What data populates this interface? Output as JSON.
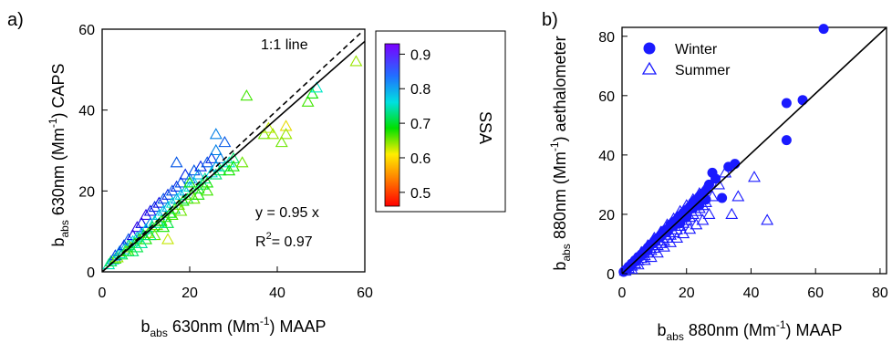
{
  "chart_data": [
    {
      "type": "scatter",
      "panel_label": "a)",
      "xlabel": {
        "base": "b",
        "sub": "abs",
        "rest": " 630nm (Mm",
        "sup": "-1",
        "tail": ") MAAP"
      },
      "ylabel": {
        "base": "b",
        "sub": "abs",
        "rest": " 630nm (Mm",
        "sup": "-1",
        "tail": ") CAPS"
      },
      "xlim": [
        0,
        60
      ],
      "ylim": [
        0,
        60
      ],
      "x_ticks": [
        "0",
        "20",
        "40",
        "60"
      ],
      "y_ticks": [
        "0",
        "20",
        "40",
        "60"
      ],
      "marker": "open-triangle",
      "lines": [
        {
          "name": "1:1 line",
          "style": "dashed",
          "slope": 1
        },
        {
          "name": "fit",
          "style": "solid",
          "slope": 0.95
        }
      ],
      "one_to_one_label": "1:1 line",
      "fit_text": "y = 0.95 x",
      "r2_text": {
        "base": "R",
        "sup": "2",
        "rest": "= 0.97"
      },
      "colorbar": {
        "label": "SSA",
        "ticks": [
          "0.9",
          "0.8",
          "0.7",
          "0.6",
          "0.5"
        ],
        "range": [
          0.46,
          0.93
        ],
        "colormap": "rainbow (red low, violet high)"
      },
      "series": [
        {
          "name": "SSA-colored points",
          "points": [
            [
              1.5,
              1.8,
              0.75
            ],
            [
              2,
              2.5,
              0.7
            ],
            [
              2.5,
              3,
              0.8
            ],
            [
              3,
              3.2,
              0.65
            ],
            [
              3,
              4,
              0.85
            ],
            [
              3.5,
              3.5,
              0.6
            ],
            [
              4,
              4.5,
              0.75
            ],
            [
              4,
              5,
              0.82
            ],
            [
              4.5,
              4.2,
              0.7
            ],
            [
              5,
              5.5,
              0.8
            ],
            [
              5,
              6.5,
              0.86
            ],
            [
              5.5,
              5,
              0.62
            ],
            [
              6,
              6.5,
              0.72
            ],
            [
              6,
              8,
              0.84
            ],
            [
              6.5,
              6,
              0.6
            ],
            [
              7,
              7.5,
              0.78
            ],
            [
              7,
              9,
              0.88
            ],
            [
              7.5,
              7,
              0.66
            ],
            [
              8,
              8.5,
              0.76
            ],
            [
              8,
              11,
              0.9
            ],
            [
              8.5,
              8,
              0.64
            ],
            [
              9,
              9.5,
              0.8
            ],
            [
              9,
              12,
              0.88
            ],
            [
              9.5,
              9,
              0.68
            ],
            [
              10,
              10.5,
              0.78
            ],
            [
              10,
              14,
              0.9
            ],
            [
              10.5,
              9.5,
              0.6
            ],
            [
              11,
              12,
              0.82
            ],
            [
              11,
              15,
              0.88
            ],
            [
              11.5,
              11,
              0.7
            ],
            [
              12,
              12.5,
              0.76
            ],
            [
              12,
              16,
              0.86
            ],
            [
              12.5,
              11.5,
              0.62
            ],
            [
              13,
              14,
              0.8
            ],
            [
              13,
              17,
              0.88
            ],
            [
              13.5,
              12.5,
              0.66
            ],
            [
              14,
              15,
              0.78
            ],
            [
              14,
              18,
              0.84
            ],
            [
              14.5,
              13.5,
              0.64
            ],
            [
              15,
              16,
              0.8
            ],
            [
              15,
              19,
              0.86
            ],
            [
              15.5,
              14.5,
              0.68
            ],
            [
              16,
              17,
              0.76
            ],
            [
              16,
              20,
              0.84
            ],
            [
              16.5,
              15.5,
              0.7
            ],
            [
              17,
              18,
              0.8
            ],
            [
              17,
              21,
              0.86
            ],
            [
              17.5,
              16.5,
              0.62
            ],
            [
              18,
              19,
              0.78
            ],
            [
              18,
              22,
              0.84
            ],
            [
              18.5,
              17.5,
              0.66
            ],
            [
              19,
              20,
              0.8
            ],
            [
              19,
              24,
              0.86
            ],
            [
              19.5,
              18,
              0.7
            ],
            [
              20,
              21,
              0.76
            ],
            [
              20,
              23,
              0.82
            ],
            [
              20.5,
              19,
              0.64
            ],
            [
              21,
              22,
              0.78
            ],
            [
              21,
              25,
              0.84
            ],
            [
              22,
              20.5,
              0.68
            ],
            [
              22,
              24,
              0.8
            ],
            [
              22.5,
              26,
              0.86
            ],
            [
              23,
              21.5,
              0.7
            ],
            [
              23.5,
              23,
              0.74
            ],
            [
              24,
              27,
              0.84
            ],
            [
              24,
              22,
              0.66
            ],
            [
              25,
              24.5,
              0.78
            ],
            [
              25,
              28,
              0.86
            ],
            [
              26,
              24,
              0.72
            ],
            [
              26,
              26,
              0.8
            ],
            [
              27,
              25,
              0.7
            ],
            [
              27,
              28,
              0.82
            ],
            [
              28,
              26,
              0.74
            ],
            [
              29,
              27,
              0.76
            ],
            [
              29,
              25,
              0.66
            ],
            [
              30,
              28,
              0.72
            ],
            [
              33,
              43.5,
              0.64
            ],
            [
              37,
              34,
              0.62
            ],
            [
              38,
              35.5,
              0.58
            ],
            [
              39,
              34,
              0.6
            ],
            [
              41,
              32,
              0.62
            ],
            [
              42,
              36,
              0.56
            ],
            [
              42,
              34,
              0.6
            ],
            [
              47,
              42,
              0.64
            ],
            [
              48,
              44,
              0.66
            ],
            [
              49,
              45.5,
              0.76
            ],
            [
              58,
              52,
              0.6
            ],
            [
              17,
              27,
              0.84
            ],
            [
              20,
              22,
              0.66
            ],
            [
              21,
              18,
              0.62
            ],
            [
              14,
              11,
              0.66
            ],
            [
              12,
              9,
              0.62
            ],
            [
              15,
              12,
              0.7
            ],
            [
              16,
              14,
              0.64
            ],
            [
              10,
              8,
              0.66
            ],
            [
              8,
              6,
              0.7
            ],
            [
              6,
              5,
              0.66
            ],
            [
              18,
              15,
              0.62
            ],
            [
              22,
              19,
              0.66
            ],
            [
              24,
              20,
              0.64
            ],
            [
              26,
              30,
              0.82
            ],
            [
              28,
              32,
              0.84
            ],
            [
              30,
              26,
              0.66
            ],
            [
              32,
              27,
              0.62
            ],
            [
              26,
              34,
              0.82
            ],
            [
              15,
              8,
              0.58
            ],
            [
              13,
              12,
              0.74
            ],
            [
              11,
              9,
              0.72
            ],
            [
              9,
              7,
              0.74
            ],
            [
              7,
              5,
              0.72
            ]
          ]
        }
      ]
    },
    {
      "type": "scatter",
      "panel_label": "b)",
      "xlabel": {
        "base": "b",
        "sub": "abs",
        "rest": " 880nm (Mm",
        "sup": "-1",
        "tail": ") MAAP"
      },
      "ylabel": {
        "base": "b",
        "sub": "abs",
        "rest": " 880nm (Mm",
        "sup": "-1",
        "tail": ") aethalometer"
      },
      "xlim": [
        0,
        82
      ],
      "ylim": [
        0,
        83
      ],
      "x_ticks": [
        "0",
        "20",
        "40",
        "60",
        "80"
      ],
      "y_ticks": [
        "0",
        "20",
        "40",
        "60",
        "80"
      ],
      "legend_position": "top-left",
      "accent_color": "#1a1aff",
      "lines": [
        {
          "name": "fit",
          "style": "solid",
          "slope": 1.02
        }
      ],
      "series": [
        {
          "name": "Winter",
          "marker": "filled-circle",
          "points": [
            [
              0.5,
              0.6
            ],
            [
              1,
              1.2
            ],
            [
              1.5,
              1.5
            ],
            [
              2,
              2.3
            ],
            [
              2.5,
              2.6
            ],
            [
              3,
              3.4
            ],
            [
              3.5,
              3.6
            ],
            [
              4,
              4.5
            ],
            [
              4.5,
              4.8
            ],
            [
              5,
              5.6
            ],
            [
              5.5,
              5.8
            ],
            [
              6,
              6.5
            ],
            [
              6.5,
              6.8
            ],
            [
              7,
              7.6
            ],
            [
              7.5,
              7.8
            ],
            [
              8,
              8.8
            ],
            [
              8.5,
              9.2
            ],
            [
              9,
              9.8
            ],
            [
              9.5,
              10.2
            ],
            [
              10,
              11
            ],
            [
              10.5,
              11.5
            ],
            [
              11,
              12
            ],
            [
              12,
              13
            ],
            [
              12.5,
              13.4
            ],
            [
              13,
              14.5
            ],
            [
              14,
              15
            ],
            [
              15,
              16.5
            ],
            [
              16,
              17.5
            ],
            [
              17,
              18.2
            ],
            [
              18,
              19.5
            ],
            [
              19,
              20.5
            ],
            [
              20,
              21.5
            ],
            [
              21,
              22.5
            ],
            [
              22,
              24
            ],
            [
              23,
              25
            ],
            [
              24,
              26
            ],
            [
              25,
              27
            ],
            [
              26,
              28
            ],
            [
              27,
              30
            ],
            [
              28,
              34
            ],
            [
              29,
              32
            ],
            [
              31,
              25.5
            ],
            [
              33,
              36
            ],
            [
              35,
              37
            ],
            [
              51,
              45
            ],
            [
              51,
              57.5
            ],
            [
              56,
              58.5
            ],
            [
              62.5,
              82.5
            ],
            [
              20,
              19
            ],
            [
              18,
              17
            ],
            [
              16,
              16
            ],
            [
              14,
              14
            ],
            [
              12,
              12.5
            ],
            [
              10,
              10.5
            ],
            [
              8,
              8
            ],
            [
              6,
              6
            ],
            [
              4,
              4
            ],
            [
              2,
              2
            ],
            [
              22,
              22
            ],
            [
              24,
              23
            ],
            [
              26,
              25
            ]
          ]
        },
        {
          "name": "Summer",
          "marker": "open-triangle",
          "points": [
            [
              1,
              0.9
            ],
            [
              2,
              1.8
            ],
            [
              3,
              2.6
            ],
            [
              4,
              3.4
            ],
            [
              5,
              4.4
            ],
            [
              6,
              5.2
            ],
            [
              7,
              6.1
            ],
            [
              8,
              7
            ],
            [
              9,
              7.8
            ],
            [
              10,
              8.6
            ],
            [
              11,
              9.5
            ],
            [
              12,
              10.2
            ],
            [
              13,
              11
            ],
            [
              14,
              12
            ],
            [
              15,
              13
            ],
            [
              16,
              13.8
            ],
            [
              17,
              14.8
            ],
            [
              18,
              16
            ],
            [
              19,
              17
            ],
            [
              20,
              18
            ],
            [
              21,
              19
            ],
            [
              22,
              20
            ],
            [
              23,
              21
            ],
            [
              24,
              22
            ],
            [
              25,
              23
            ],
            [
              26,
              24
            ],
            [
              28,
              26
            ],
            [
              30,
              30
            ],
            [
              32,
              34
            ],
            [
              34,
              20
            ],
            [
              36,
              26
            ],
            [
              41,
              32.5
            ],
            [
              45,
              18
            ],
            [
              12,
              14
            ],
            [
              14,
              16.5
            ],
            [
              16,
              18.5
            ],
            [
              10,
              12
            ],
            [
              8,
              9.5
            ],
            [
              6,
              7.2
            ],
            [
              18,
              21
            ],
            [
              20,
              23
            ],
            [
              22,
              25
            ],
            [
              24,
              27
            ],
            [
              26,
              29
            ],
            [
              9,
              5.5
            ],
            [
              11,
              7
            ],
            [
              13,
              9
            ],
            [
              15,
              10.5
            ],
            [
              17,
              12
            ],
            [
              19,
              13.5
            ],
            [
              21,
              15
            ],
            [
              23,
              16.5
            ],
            [
              25,
              18
            ],
            [
              27,
              20
            ],
            [
              5,
              3
            ],
            [
              7,
              4.5
            ],
            [
              3,
              1.5
            ]
          ]
        }
      ]
    }
  ]
}
